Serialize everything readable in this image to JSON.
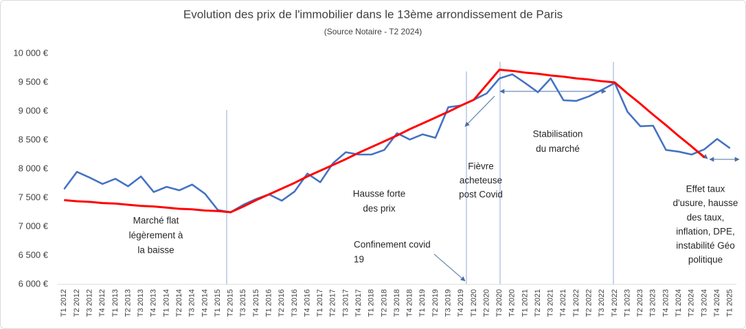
{
  "chart_data": {
    "type": "line",
    "title": "Evolution des prix de l'immobilier dans le 13ème arrondissement de Paris",
    "subtitle": "(Source Notaire - T2 2024)",
    "categories": [
      "T1 2012",
      "T2 2012",
      "T3 2012",
      "T4 2012",
      "T1 2013",
      "T2 2013",
      "T3 2013",
      "T4 2013",
      "T1 2014",
      "T2 2014",
      "T3 2014",
      "T4 2014",
      "T1 2015",
      "T2 2015",
      "T3 2015",
      "T4 2015",
      "T1 2016",
      "T2 2016",
      "T3 2016",
      "T4 2016",
      "T1 2017",
      "T2 2017",
      "T3 2017",
      "T4 2017",
      "T1 2018",
      "T2 2018",
      "T3 2018",
      "T4 2018",
      "T1 2019",
      "T2 2019",
      "T3 2019",
      "T4 2019",
      "T1 2020",
      "T2 2020",
      "T3 2020",
      "T4 2020",
      "T1 2021",
      "T2 2021",
      "T3 2021",
      "T4 2021",
      "T1 2022",
      "T2 2022",
      "T3 2022",
      "T4 2022",
      "T1 2023",
      "T2 2023",
      "T3 2023",
      "T4 2023",
      "T1 2024",
      "T2 2024",
      "T3 2024",
      "T4 2024",
      "T1 2025"
    ],
    "series": [
      {
        "color": "#4472c4",
        "values": [
          7650,
          7950,
          7850,
          7740,
          7830,
          7700,
          7870,
          7600,
          7690,
          7630,
          7730,
          7570,
          7290,
          7250,
          7380,
          7480,
          7560,
          7450,
          7610,
          7920,
          7770,
          8100,
          8290,
          8250,
          8250,
          8330,
          8620,
          8510,
          8600,
          8540,
          9070,
          9100,
          9200,
          9310,
          9570,
          9640,
          9490,
          9330,
          9570,
          9190,
          9180,
          9260,
          9370,
          9490,
          8990,
          8740,
          8750,
          8330,
          8300,
          8250,
          8340,
          8520,
          8360
        ]
      },
      {
        "color": "#ff0000",
        "values": [
          7460,
          7440,
          7430,
          7410,
          7400,
          7380,
          7360,
          7350,
          7330,
          7310,
          7300,
          7280,
          7270,
          7250,
          7350,
          7460,
          7560,
          7660,
          7760,
          7870,
          7970,
          8070,
          8170,
          8280,
          8380,
          8480,
          8580,
          8690,
          8790,
          8890,
          8990,
          9100,
          9200,
          9460,
          9720,
          9700,
          9670,
          9650,
          9620,
          9600,
          9570,
          9550,
          9520,
          9500,
          9310,
          9130,
          8940,
          8760,
          8570,
          8390,
          8200,
          null,
          null
        ]
      }
    ],
    "ylim": [
      6000,
      10000
    ],
    "yticks": [
      {
        "value": 6000,
        "label": "6 000 €"
      },
      {
        "value": 6500,
        "label": "6 500 €"
      },
      {
        "value": 7000,
        "label": "7 000 €"
      },
      {
        "value": 7500,
        "label": "7 500 €"
      },
      {
        "value": 8000,
        "label": "8 000 €"
      },
      {
        "value": 8500,
        "label": "8 500 €"
      },
      {
        "value": 9000,
        "label": "9 000 €"
      },
      {
        "value": 9500,
        "label": "9 500 €"
      },
      {
        "value": 10000,
        "label": "10 000 €"
      }
    ],
    "grid": false,
    "annotations": [
      {
        "lines": [
          "Marché flat",
          "légèrement à",
          "la baisse"
        ]
      },
      {
        "lines": [
          "Hausse forte",
          "des prix"
        ]
      },
      {
        "lines": [
          "Confinement covid",
          "19"
        ]
      },
      {
        "lines": [
          "Fièvre",
          "acheteuse",
          "post Covid"
        ]
      },
      {
        "lines": [
          "Stabilisation",
          "du marché"
        ]
      },
      {
        "lines": [
          "Effet taux",
          "d'usure, hausse",
          "des taux,",
          "inflation, DPE,",
          "instabilité Géo",
          "politique"
        ]
      }
    ]
  }
}
